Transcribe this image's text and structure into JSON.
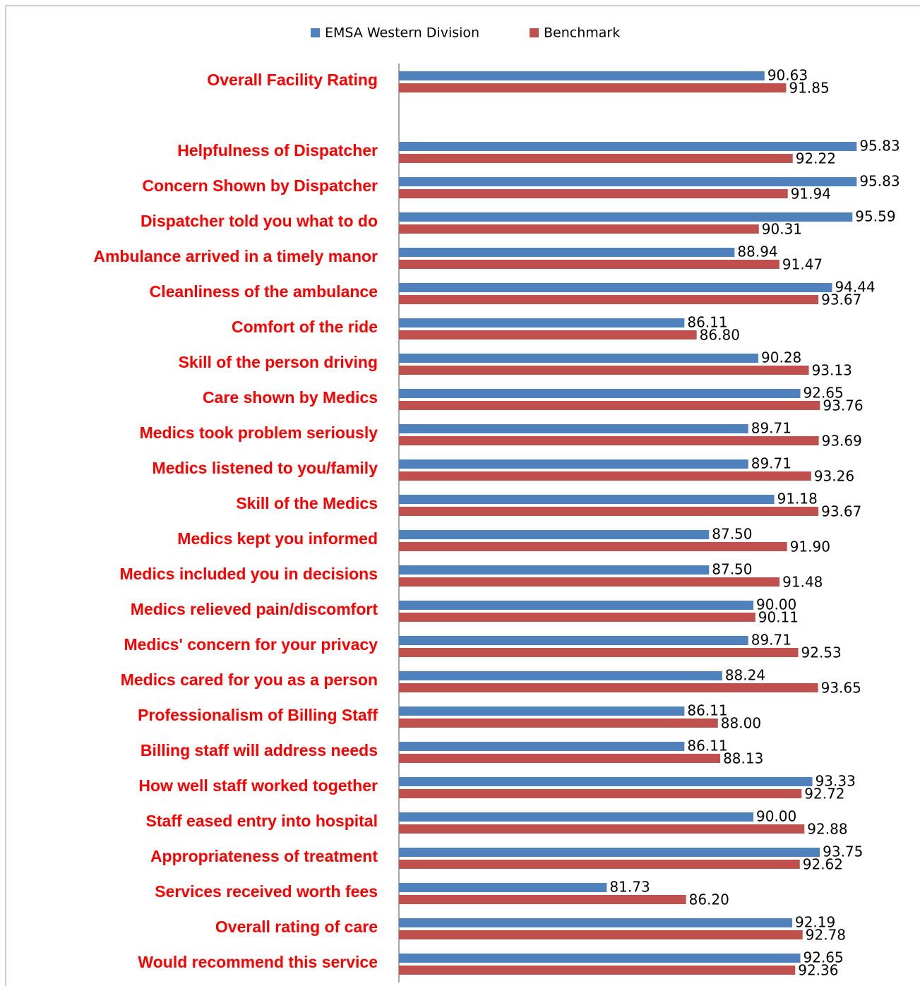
{
  "chart_data": {
    "type": "bar",
    "orientation": "horizontal",
    "categories": [
      "Overall Facility Rating",
      null,
      "Helpfulness of Dispatcher",
      "Concern Shown by Dispatcher",
      "Dispatcher told you what to do",
      "Ambulance arrived in a timely manor",
      "Cleanliness of the ambulance",
      "Comfort of the ride",
      "Skill of the person driving",
      "Care shown by Medics",
      "Medics took problem seriously",
      "Medics listened to you/family",
      "Skill of the Medics",
      "Medics kept you informed",
      "Medics included you in decisions",
      "Medics relieved pain/discomfort",
      "Medics' concern for your privacy",
      "Medics cared for you as a person",
      "Professionalism of Billing Staff",
      "Billing staff will address needs",
      "How well staff worked together",
      "Staff eased entry into hospital",
      "Appropriateness of treatment",
      "Services received worth fees",
      "Overall rating of care",
      "Would recommend this service"
    ],
    "series": [
      {
        "name": "EMSA Western Division",
        "color": "#4f81bd",
        "values": [
          90.63,
          null,
          95.83,
          95.83,
          95.59,
          88.94,
          94.44,
          86.11,
          90.28,
          92.65,
          89.71,
          89.71,
          91.18,
          87.5,
          87.5,
          90,
          89.71,
          88.24,
          86.11,
          86.11,
          93.33,
          90,
          93.75,
          81.73,
          92.19,
          92.65
        ],
        "value_labels": [
          "90.63",
          null,
          "95.83",
          "95.83",
          "95.59",
          "88.94",
          "94.44",
          "86.11",
          "90.28",
          "92.65",
          "89.71",
          "89.71",
          "91.18",
          "87.50",
          "87.50",
          "90.00",
          "89.71",
          "88.24",
          "86.11",
          "86.11",
          "93.33",
          "90.00",
          "93.75",
          "81.73",
          "92.19",
          "92.65"
        ]
      },
      {
        "name": "Benchmark",
        "color": "#c0504d",
        "values": [
          91.85,
          null,
          92.22,
          91.94,
          90.31,
          91.47,
          93.67,
          86.8,
          93.13,
          93.76,
          93.69,
          93.26,
          93.67,
          91.9,
          91.48,
          90.11,
          92.53,
          93.65,
          88,
          88.13,
          92.72,
          92.88,
          92.62,
          86.2,
          92.78,
          92.36
        ],
        "value_labels": [
          "91.85",
          null,
          "92.22",
          "91.94",
          "90.31",
          "91.47",
          "93.67",
          "86.80",
          "93.13",
          "93.76",
          "93.69",
          "93.26",
          "93.67",
          "91.90",
          "91.48",
          "90.11",
          "92.53",
          "93.65",
          "88.00",
          "88.13",
          "92.72",
          "92.88",
          "92.62",
          "86.20",
          "92.78",
          "92.36"
        ]
      }
    ],
    "xlim": [
      70,
      100
    ],
    "legend": "top",
    "label_color": "#ff0000"
  }
}
